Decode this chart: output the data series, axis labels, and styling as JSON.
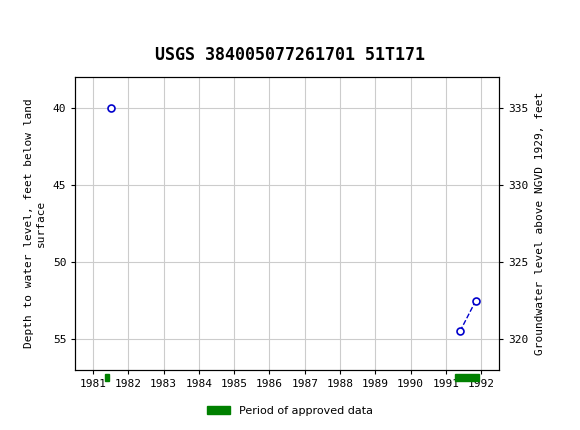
{
  "title": "USGS 384005077261701 51T171",
  "ylabel_left": "Depth to water level, feet below land\nsurface",
  "ylabel_right": "Groundwater level above NGVD 1929, feet",
  "header_color": "#006644",
  "background_color": "#ffffff",
  "plot_bg_color": "#ffffff",
  "grid_color": "#cccccc",
  "data_points": [
    {
      "year": 1981.5,
      "depth": 40.0
    },
    {
      "year": 1991.4,
      "depth": 54.5
    },
    {
      "year": 1991.85,
      "depth": 52.5
    }
  ],
  "approved_periods": [
    {
      "start": 1981.35,
      "end": 1981.45
    },
    {
      "start": 1991.25,
      "end": 1991.95
    }
  ],
  "ylim_left": [
    57,
    38
  ],
  "ylim_right": [
    318,
    337
  ],
  "xlim": [
    1980.5,
    1992.5
  ],
  "yticks_left": [
    40,
    45,
    50,
    55
  ],
  "yticks_right": [
    335,
    330,
    325,
    320
  ],
  "xticks": [
    1981,
    1982,
    1983,
    1984,
    1985,
    1986,
    1987,
    1988,
    1989,
    1990,
    1991,
    1992
  ],
  "point_color": "#0000cc",
  "line_color": "#0000cc",
  "approved_color": "#008000",
  "approved_bar_height": 0.4,
  "approved_y": 57.3,
  "legend_label": "Period of approved data"
}
